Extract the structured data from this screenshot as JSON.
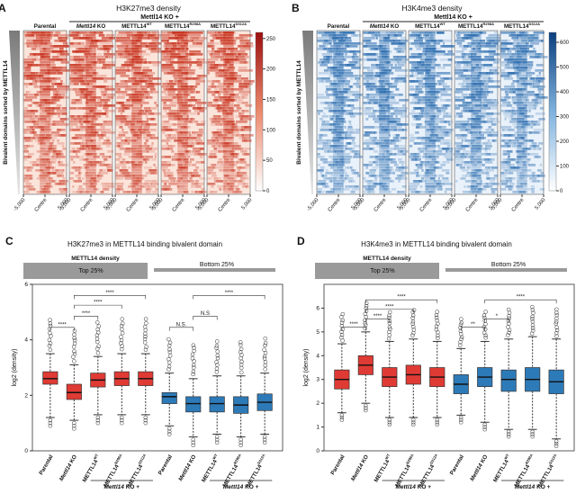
{
  "panels": {
    "A": {
      "letter": "A",
      "title": "H3K27me3 density",
      "group_label": "Mettl14 KO +",
      "side_label": "Bivalent domains sorted by METTL14",
      "columns": [
        "Parental",
        "Mettl14 KO",
        "METTL14WT",
        "METTL14R298A",
        "METTL14D312A"
      ],
      "x_ticks": [
        "-5,000",
        "Centre",
        "5,000"
      ],
      "colorbar_ticks": [
        "250",
        "200",
        "150",
        "100",
        "50",
        "0"
      ],
      "color": "#c8321e"
    },
    "B": {
      "letter": "B",
      "title": "H3K4me3 density",
      "group_label": "Mettl14 KO +",
      "side_label": "Bivalent domains sorted by METTL14",
      "columns": [
        "Parental",
        "Mettl14 KO",
        "METTL14WT",
        "METTL14R298A",
        "METTL14D312A"
      ],
      "x_ticks": [
        "-5,000",
        "Centre",
        "5,000"
      ],
      "colorbar_ticks": [
        "600",
        "500",
        "400",
        "300",
        "200",
        "100",
        "0"
      ],
      "color": "#2f6fb0"
    },
    "C": {
      "letter": "C",
      "title": "H3K27me3 in METTL14 binding bivalent domain",
      "density_label": "METTL14 density",
      "top_label": "Top 25%",
      "bottom_label": "Bottom 25%",
      "ylabel": "log2 (density)",
      "bottom_group_label": "Mettl14 KO +",
      "sig": [
        "****",
        "****",
        "****",
        "****",
        "N.S.",
        "N.S",
        "****"
      ]
    },
    "D": {
      "letter": "D",
      "title": "H3K4me3 in METTL14 binding bivalent domain",
      "density_label": "METTL14 density",
      "top_label": "Top 25%",
      "bottom_label": "Bottom 25%",
      "ylabel": "log2 (density)",
      "bottom_group_label": "Mettl14 KO +",
      "sig": [
        "****",
        "****",
        "****",
        "****",
        "**",
        "*",
        "****"
      ]
    }
  },
  "chart_data": [
    {
      "type": "box",
      "title": "H3K27me3 in METTL14 binding bivalent domain",
      "ylabel": "log2 (density)",
      "ylim": [
        0,
        6
      ],
      "yticks": [
        0,
        2,
        4,
        6
      ],
      "categories": [
        "Parental",
        "Mettl14 KO",
        "METTL14WT",
        "METTL14R298A",
        "METTL14D312A",
        "Parental",
        "Mettl14 KO",
        "METTL14WT",
        "METTL14R298A",
        "METTL14D312A"
      ],
      "groups": [
        "Top 25%",
        "Top 25%",
        "Top 25%",
        "Top 25%",
        "Top 25%",
        "Bottom 25%",
        "Bottom 25%",
        "Bottom 25%",
        "Bottom 25%",
        "Bottom 25%"
      ],
      "colors": [
        "#e03a34",
        "#e03a34",
        "#e03a34",
        "#e03a34",
        "#e03a34",
        "#2d7ab8",
        "#2d7ab8",
        "#2d7ab8",
        "#2d7ab8",
        "#2d7ab8"
      ],
      "boxes": [
        {
          "low": 1.2,
          "q1": 2.4,
          "median": 2.6,
          "q3": 2.85,
          "high": 3.5
        },
        {
          "low": 1.1,
          "q1": 1.85,
          "median": 2.1,
          "q3": 2.4,
          "high": 3.1
        },
        {
          "low": 1.3,
          "q1": 2.3,
          "median": 2.55,
          "q3": 2.8,
          "high": 3.4
        },
        {
          "low": 1.3,
          "q1": 2.35,
          "median": 2.6,
          "q3": 2.85,
          "high": 3.5
        },
        {
          "low": 1.3,
          "q1": 2.35,
          "median": 2.6,
          "q3": 2.85,
          "high": 3.5
        },
        {
          "low": 0.9,
          "q1": 1.7,
          "median": 1.95,
          "q3": 2.1,
          "high": 2.8
        },
        {
          "low": 0.5,
          "q1": 1.4,
          "median": 1.7,
          "q3": 1.95,
          "high": 2.6
        },
        {
          "low": 0.6,
          "q1": 1.4,
          "median": 1.7,
          "q3": 1.95,
          "high": 2.7
        },
        {
          "low": 0.5,
          "q1": 1.35,
          "median": 1.65,
          "q3": 1.95,
          "high": 2.7
        },
        {
          "low": 0.6,
          "q1": 1.45,
          "median": 1.75,
          "q3": 2.05,
          "high": 2.8
        }
      ]
    },
    {
      "type": "box",
      "title": "H3K4me3 in METTL14 binding bivalent domain",
      "ylabel": "log2 (density)",
      "ylim": [
        0,
        7
      ],
      "yticks": [
        0,
        1,
        2,
        3,
        4,
        5,
        6
      ],
      "categories": [
        "Parental",
        "Mettl14 KO",
        "METTL14WT",
        "METTL14R298A",
        "METTL14D312A",
        "Parental",
        "Mettl14 KO",
        "METTL14WT",
        "METTL14R298A",
        "METTL14D312A"
      ],
      "groups": [
        "Top 25%",
        "Top 25%",
        "Top 25%",
        "Top 25%",
        "Top 25%",
        "Bottom 25%",
        "Bottom 25%",
        "Bottom 25%",
        "Bottom 25%",
        "Bottom 25%"
      ],
      "colors": [
        "#e03a34",
        "#e03a34",
        "#e03a34",
        "#e03a34",
        "#e03a34",
        "#2d7ab8",
        "#2d7ab8",
        "#2d7ab8",
        "#2d7ab8",
        "#2d7ab8"
      ],
      "boxes": [
        {
          "low": 1.6,
          "q1": 2.6,
          "median": 3.0,
          "q3": 3.4,
          "high": 4.5
        },
        {
          "low": 2.0,
          "q1": 3.2,
          "median": 3.6,
          "q3": 4.0,
          "high": 5.0
        },
        {
          "low": 1.4,
          "q1": 2.7,
          "median": 3.1,
          "q3": 3.5,
          "high": 4.6
        },
        {
          "low": 1.4,
          "q1": 2.8,
          "median": 3.2,
          "q3": 3.6,
          "high": 4.7
        },
        {
          "low": 1.4,
          "q1": 2.7,
          "median": 3.1,
          "q3": 3.5,
          "high": 4.6
        },
        {
          "low": 1.5,
          "q1": 2.4,
          "median": 2.8,
          "q3": 3.2,
          "high": 4.3
        },
        {
          "low": 1.2,
          "q1": 2.7,
          "median": 3.1,
          "q3": 3.5,
          "high": 4.6
        },
        {
          "low": 0.9,
          "q1": 2.5,
          "median": 3.0,
          "q3": 3.4,
          "high": 4.7
        },
        {
          "low": 0.9,
          "q1": 2.5,
          "median": 3.0,
          "q3": 3.5,
          "high": 4.8
        },
        {
          "low": 0.5,
          "q1": 2.4,
          "median": 2.9,
          "q3": 3.4,
          "high": 4.7
        }
      ]
    }
  ]
}
